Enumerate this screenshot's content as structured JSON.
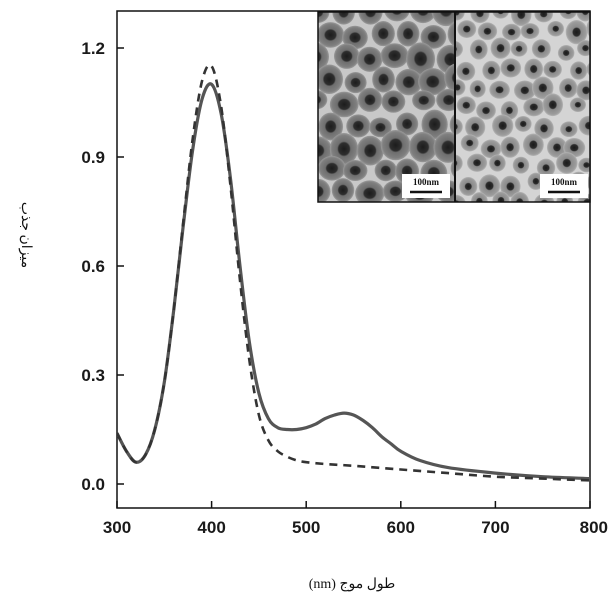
{
  "chart_data": {
    "type": "line",
    "title": "",
    "xlabel": "طول موج (nm)",
    "ylabel": "میزان جذب",
    "xlim": [
      300,
      800
    ],
    "ylim": [
      0.0,
      1.3
    ],
    "x_ticks": [
      "300",
      "400",
      "500",
      "600",
      "700",
      "800"
    ],
    "y_ticks": [
      "0.0",
      "0.3",
      "0.6",
      "0.9",
      "1.2"
    ],
    "grid": false,
    "legend": "none",
    "series": [
      {
        "style": "solid",
        "color": "#555555",
        "x": [
          300,
          310,
          320,
          330,
          340,
          350,
          360,
          370,
          380,
          390,
          400,
          410,
          420,
          430,
          440,
          450,
          460,
          470,
          480,
          490,
          500,
          510,
          520,
          530,
          540,
          550,
          560,
          570,
          580,
          590,
          600,
          620,
          650,
          700,
          750,
          800
        ],
        "y": [
          0.14,
          0.09,
          0.06,
          0.08,
          0.15,
          0.28,
          0.48,
          0.71,
          0.92,
          1.06,
          1.1,
          1.02,
          0.84,
          0.6,
          0.39,
          0.25,
          0.18,
          0.155,
          0.15,
          0.15,
          0.155,
          0.165,
          0.18,
          0.19,
          0.195,
          0.19,
          0.175,
          0.155,
          0.13,
          0.11,
          0.09,
          0.065,
          0.045,
          0.03,
          0.02,
          0.015
        ]
      },
      {
        "style": "dashed",
        "color": "#333333",
        "x": [
          300,
          310,
          320,
          330,
          340,
          350,
          360,
          370,
          380,
          390,
          400,
          410,
          420,
          430,
          440,
          450,
          460,
          470,
          480,
          490,
          500,
          520,
          550,
          600,
          650,
          700,
          750,
          800
        ],
        "y": [
          0.14,
          0.09,
          0.06,
          0.08,
          0.15,
          0.28,
          0.48,
          0.72,
          0.95,
          1.11,
          1.15,
          1.04,
          0.82,
          0.56,
          0.34,
          0.19,
          0.12,
          0.09,
          0.075,
          0.065,
          0.06,
          0.055,
          0.05,
          0.04,
          0.03,
          0.02,
          0.015,
          0.01
        ]
      }
    ],
    "inset": {
      "panels": [
        {
          "scale_label": "100nm"
        },
        {
          "scale_label": "100nm"
        }
      ]
    }
  }
}
